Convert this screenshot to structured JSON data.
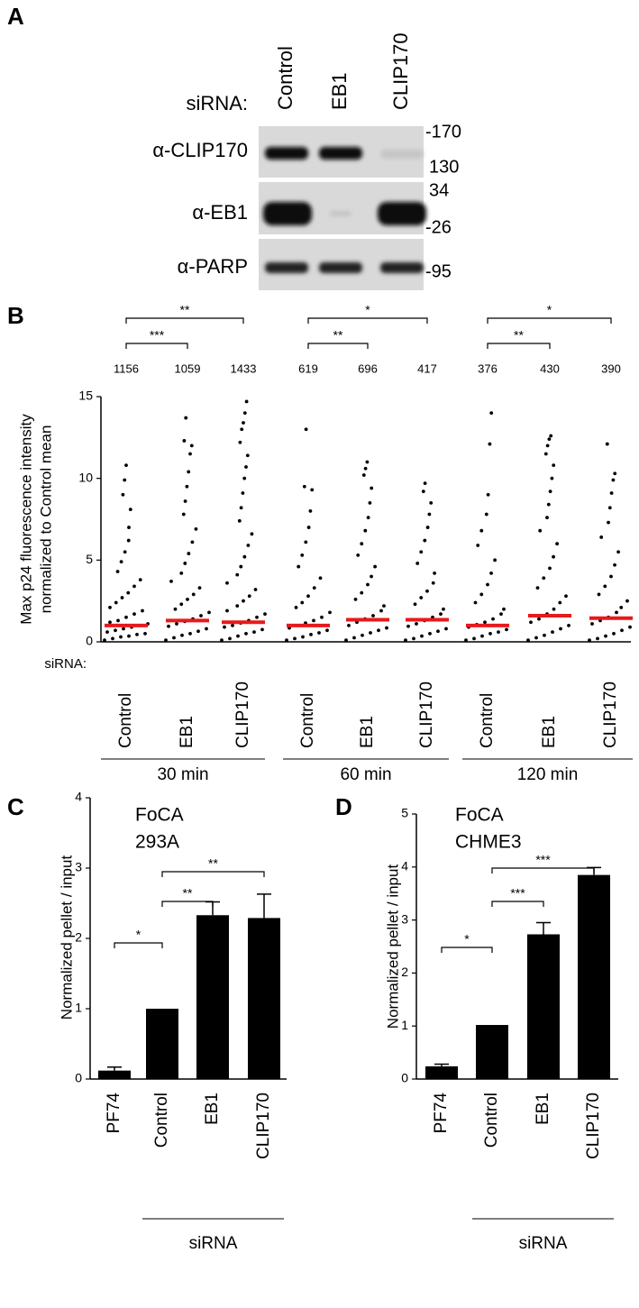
{
  "blot": {
    "panel_label": "A",
    "prefix": "siRNA:",
    "lanes": [
      "Control",
      "EB1",
      "CLIP170"
    ],
    "rows": [
      "α-CLIP170",
      "α-EB1",
      "α-PARP"
    ],
    "markers": [
      "-170",
      "130",
      "34",
      "-26",
      "-95"
    ]
  },
  "chart_data": [
    {
      "type": "strip",
      "panel_label": "B",
      "ylabel": [
        "Max p24 fluorescence intensity",
        "normalized to Control mean"
      ],
      "prefix": "siRNA:",
      "categories": [
        "Control",
        "EB1",
        "CLIP170",
        "Control",
        "EB1",
        "CLIP170",
        "Control",
        "EB1",
        "CLIP170"
      ],
      "groups": [
        "30 min",
        "60 min",
        "120 min"
      ],
      "n_labels": [
        1156,
        1059,
        1433,
        619,
        696,
        417,
        376,
        430,
        390
      ],
      "points": [
        [
          0.1,
          0.2,
          0.3,
          0.35,
          0.45,
          0.5,
          0.6,
          0.7,
          0.8,
          0.9,
          1.0,
          1.1,
          1.2,
          1.3,
          1.5,
          1.7,
          1.9,
          2.1,
          2.4,
          2.7,
          3.0,
          3.4,
          3.8,
          4.3,
          4.9,
          5.5,
          6.2,
          7.0,
          8.1,
          9.0,
          9.9,
          10.8
        ],
        [
          0.1,
          0.25,
          0.4,
          0.5,
          0.65,
          0.8,
          0.95,
          1.1,
          1.25,
          1.4,
          1.6,
          1.8,
          2.0,
          2.3,
          2.6,
          2.9,
          3.3,
          3.7,
          4.2,
          4.8,
          5.4,
          6.1,
          6.9,
          7.8,
          8.6,
          9.5,
          10.4,
          11.5,
          12.0,
          12.3,
          13.7
        ],
        [
          0.1,
          0.2,
          0.35,
          0.5,
          0.6,
          0.75,
          0.9,
          1.0,
          1.15,
          1.3,
          1.5,
          1.7,
          1.9,
          2.2,
          2.5,
          2.8,
          3.2,
          3.6,
          4.1,
          4.6,
          5.2,
          5.9,
          6.6,
          7.4,
          8.2,
          9.1,
          10.0,
          10.7,
          11.4,
          12.2,
          13.0,
          13.4,
          14.0,
          14.7
        ],
        [
          0.1,
          0.2,
          0.3,
          0.45,
          0.55,
          0.7,
          0.85,
          1.0,
          1.15,
          1.3,
          1.5,
          1.8,
          2.1,
          2.4,
          2.8,
          3.3,
          3.9,
          4.6,
          5.3,
          6.1,
          7.0,
          8.0,
          9.3,
          9.5,
          13.0
        ],
        [
          0.1,
          0.25,
          0.4,
          0.55,
          0.7,
          0.85,
          1.0,
          1.2,
          1.4,
          1.6,
          1.9,
          2.2,
          2.6,
          3.0,
          3.5,
          4.0,
          4.6,
          5.3,
          6.0,
          6.8,
          7.6,
          8.5,
          9.4,
          10.2,
          10.6,
          11.0
        ],
        [
          0.1,
          0.2,
          0.35,
          0.5,
          0.65,
          0.8,
          0.95,
          1.1,
          1.3,
          1.5,
          1.7,
          2.0,
          2.3,
          2.7,
          3.1,
          3.6,
          4.2,
          4.8,
          5.5,
          6.2,
          7.0,
          7.8,
          8.5,
          9.2,
          9.7
        ],
        [
          0.1,
          0.2,
          0.35,
          0.5,
          0.6,
          0.75,
          0.9,
          1.05,
          1.2,
          1.4,
          1.7,
          2.0,
          2.4,
          2.9,
          3.5,
          4.2,
          5.0,
          5.9,
          6.8,
          7.8,
          9.0,
          12.1,
          14.0
        ],
        [
          0.1,
          0.25,
          0.4,
          0.6,
          0.8,
          1.0,
          1.2,
          1.4,
          1.7,
          2.0,
          2.4,
          2.8,
          3.3,
          3.9,
          4.5,
          5.2,
          6.0,
          6.8,
          7.6,
          8.4,
          9.2,
          10.0,
          10.8,
          11.5,
          12.0,
          12.4,
          12.6
        ],
        [
          0.1,
          0.2,
          0.35,
          0.5,
          0.7,
          0.9,
          1.1,
          1.3,
          1.5,
          1.8,
          2.1,
          2.5,
          2.9,
          3.4,
          4.0,
          4.7,
          5.5,
          6.4,
          7.3,
          8.2,
          9.1,
          9.9,
          10.3,
          12.1
        ]
      ],
      "means": [
        1.0,
        1.3,
        1.2,
        1.0,
        1.35,
        1.35,
        1.0,
        1.6,
        1.45
      ],
      "point_color": "#000000",
      "mean_color": "#e8191c",
      "ylim": [
        0,
        15
      ],
      "yticks": [
        0,
        5,
        10,
        15
      ],
      "comparisons": [
        {
          "from": 0,
          "to": 1,
          "label": "***"
        },
        {
          "from": 0,
          "to": 2,
          "label": "**"
        },
        {
          "from": 3,
          "to": 4,
          "label": "**"
        },
        {
          "from": 3,
          "to": 5,
          "label": "*"
        },
        {
          "from": 6,
          "to": 7,
          "label": "**"
        },
        {
          "from": 6,
          "to": 8,
          "label": "*"
        }
      ]
    },
    {
      "type": "bar",
      "panel_label": "C",
      "title": [
        "FoCA",
        "293A"
      ],
      "ylabel": "Normalized pellet / input",
      "categories": [
        "PF74",
        "Control",
        "EB1",
        "CLIP170"
      ],
      "values": [
        0.12,
        1.0,
        2.33,
        2.29
      ],
      "errors": [
        0.05,
        null,
        0.19,
        0.34
      ],
      "color": "#000000",
      "ylim": [
        0,
        4
      ],
      "yticks": [
        0,
        1,
        2,
        3,
        4
      ],
      "group_label": "siRNA",
      "comparisons": [
        {
          "from": 0,
          "to": 1,
          "label": "*"
        },
        {
          "from": 1,
          "to": 2,
          "label": "**"
        },
        {
          "from": 1,
          "to": 3,
          "label": "**"
        }
      ]
    },
    {
      "type": "bar",
      "panel_label": "D",
      "title": [
        "FoCA",
        "CHME3"
      ],
      "ylabel": "Normalized pellet / input",
      "categories": [
        "PF74",
        "Control",
        "EB1",
        "CLIP170"
      ],
      "values": [
        0.24,
        1.02,
        2.73,
        3.85
      ],
      "errors": [
        0.04,
        null,
        0.22,
        0.14
      ],
      "color": "#000000",
      "ylim": [
        0,
        5
      ],
      "yticks": [
        0,
        1,
        2,
        3,
        4,
        5
      ],
      "group_label": "siRNA",
      "comparisons": [
        {
          "from": 0,
          "to": 1,
          "label": "*"
        },
        {
          "from": 1,
          "to": 2,
          "label": "***"
        },
        {
          "from": 1,
          "to": 3,
          "label": "***"
        }
      ]
    }
  ]
}
